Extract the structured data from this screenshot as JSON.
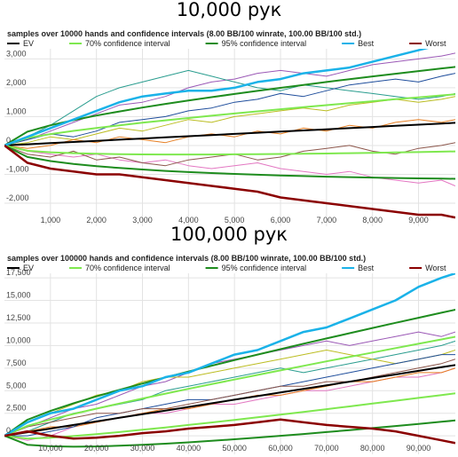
{
  "chart_data": [
    {
      "type": "line",
      "title": "10,000 рук",
      "subtitle": "samples over 10000 hands and confidence intervals (8.00 BB/100 winrate, 100.00 BB/100 std.)",
      "x": [
        0,
        500,
        1000,
        1500,
        2000,
        2500,
        3000,
        3500,
        4000,
        4500,
        5000,
        5500,
        6000,
        6500,
        7000,
        7500,
        8000,
        8500,
        9000,
        9500,
        9800
      ],
      "xlim": [
        0,
        9800
      ],
      "xticks": [
        {
          "value": 1000,
          "label": "1,000"
        },
        {
          "value": 2000,
          "label": "2,000"
        },
        {
          "value": 3000,
          "label": "3,000"
        },
        {
          "value": 4000,
          "label": "4,000"
        },
        {
          "value": 5000,
          "label": "5,000"
        },
        {
          "value": 6000,
          "label": "6,000"
        },
        {
          "value": 7000,
          "label": "7,000"
        },
        {
          "value": 8000,
          "label": "8,000"
        },
        {
          "value": 9000,
          "label": "9,000"
        }
      ],
      "ylim": [
        -2800,
        3350
      ],
      "yticks": [
        {
          "value": -2000,
          "label": "-2,000"
        },
        {
          "value": -1000,
          "label": "-1,000"
        },
        0,
        {
          "value": 1000,
          "label": "1,000"
        },
        {
          "value": 2000,
          "label": "2,000"
        },
        {
          "value": 3000,
          "label": "3,000"
        }
      ],
      "grid": true,
      "legend": "top",
      "series": [
        {
          "color": "#9b59b6",
          "values": [
            0,
            200,
            500,
            800,
            1100,
            1400,
            1500,
            1700,
            2000,
            2200,
            2300,
            2500,
            2600,
            2500,
            2400,
            2600,
            2800,
            2900,
            3000,
            3100,
            3200
          ]
        },
        {
          "color": "#2a9d8f",
          "values": [
            0,
            300,
            700,
            1200,
            1700,
            2000,
            2200,
            2400,
            2600,
            2400,
            2200,
            2000,
            1900,
            2100,
            2000,
            1900,
            1800,
            1700,
            1600,
            1700,
            1800
          ]
        },
        {
          "color": "#e377c2",
          "values": [
            0,
            -200,
            -300,
            -400,
            -300,
            -500,
            -600,
            -500,
            -700,
            -800,
            -700,
            -600,
            -800,
            -900,
            -1000,
            -900,
            -1100,
            -1200,
            -1300,
            -1200,
            -1400
          ]
        },
        {
          "color": "#bcbd22",
          "values": [
            0,
            100,
            300,
            200,
            400,
            600,
            500,
            700,
            900,
            800,
            1000,
            1100,
            1200,
            1300,
            1200,
            1400,
            1500,
            1600,
            1500,
            1600,
            1700
          ]
        },
        {
          "color": "#e67e22",
          "values": [
            0,
            -100,
            0,
            200,
            100,
            300,
            200,
            100,
            300,
            400,
            300,
            500,
            400,
            600,
            500,
            700,
            600,
            800,
            900,
            800,
            900
          ]
        },
        {
          "color": "#1f4e9c",
          "values": [
            0,
            200,
            400,
            300,
            500,
            800,
            900,
            1000,
            1200,
            1300,
            1500,
            1600,
            1800,
            1700,
            1900,
            2100,
            2200,
            2300,
            2200,
            2400,
            2500
          ]
        },
        {
          "color": "#8c564b",
          "values": [
            0,
            -300,
            -400,
            -200,
            -500,
            -400,
            -600,
            -700,
            -500,
            -400,
            -300,
            -500,
            -400,
            -200,
            -100,
            0,
            -200,
            -300,
            -100,
            0,
            100
          ]
        },
        {
          "name": "EV",
          "color": "#000000",
          "values": [
            0,
            40,
            80,
            120,
            160,
            200,
            240,
            280,
            320,
            360,
            400,
            440,
            480,
            520,
            560,
            600,
            640,
            680,
            720,
            760,
            784
          ]
        },
        {
          "name": "70% confidence interval",
          "color": "#7fe84f",
          "upper": [
            0,
            264,
            396,
            507,
            607,
            700,
            788,
            872,
            952,
            1031,
            1107,
            1182,
            1255,
            1326,
            1397,
            1466,
            1534,
            1602,
            1669,
            1735,
            1774
          ],
          "lower": [
            0,
            -184,
            -236,
            -267,
            -287,
            -300,
            -308,
            -312,
            -312,
            -311,
            -307,
            -302,
            -295,
            -286,
            -277,
            -266,
            -254,
            -242,
            -229,
            -215,
            -206
          ]
        },
        {
          "name": "95% confidence interval",
          "color": "#1e8c1e",
          "upper": [
            0,
            478,
            700,
            879,
            1037,
            1180,
            1313,
            1440,
            1560,
            1675,
            1786,
            1893,
            1998,
            2100,
            2200,
            2297,
            2393,
            2487,
            2579,
            2670,
            2724
          ],
          "lower": [
            0,
            -398,
            -540,
            -639,
            -717,
            -780,
            -833,
            -880,
            -920,
            -955,
            -986,
            -1013,
            -1038,
            -1060,
            -1080,
            -1097,
            -1113,
            -1127,
            -1139,
            -1150,
            -1156
          ]
        },
        {
          "name": "Best",
          "color": "#1ab2e8",
          "values": [
            0,
            300,
            600,
            900,
            1200,
            1500,
            1700,
            1800,
            1900,
            1900,
            2000,
            2200,
            2300,
            2500,
            2600,
            2700,
            2900,
            3100,
            3300,
            3500,
            3600
          ]
        },
        {
          "name": "Worst",
          "color": "#8b0000",
          "values": [
            0,
            -600,
            -800,
            -900,
            -1000,
            -1000,
            -1100,
            -1200,
            -1300,
            -1400,
            -1500,
            -1600,
            -1800,
            -1900,
            -2000,
            -2100,
            -2200,
            -2300,
            -2400,
            -2400,
            -2500
          ]
        }
      ]
    },
    {
      "type": "line",
      "title": "100,000 рук",
      "subtitle": "samples over 100000 hands and confidence intervals (8.00 BB/100 winrate, 100.00 BB/100 std.)",
      "x": [
        0,
        5000,
        10000,
        15000,
        20000,
        25000,
        30000,
        35000,
        40000,
        45000,
        50000,
        55000,
        60000,
        65000,
        70000,
        75000,
        80000,
        85000,
        90000,
        95000,
        98000
      ],
      "xlim": [
        0,
        98000
      ],
      "xticks": [
        {
          "value": 10000,
          "label": "10,000"
        },
        {
          "value": 20000,
          "label": "20,000"
        },
        {
          "value": 30000,
          "label": "30,000"
        },
        {
          "value": 40000,
          "label": "40,000"
        },
        {
          "value": 50000,
          "label": "50,000"
        },
        {
          "value": 60000,
          "label": "60,000"
        },
        {
          "value": 70000,
          "label": "70,000"
        },
        {
          "value": 80000,
          "label": "80,000"
        },
        {
          "value": 90000,
          "label": "90,000"
        }
      ],
      "ylim": [
        -2050,
        18000
      ],
      "yticks": [
        0,
        {
          "value": 2500,
          "label": "2,500"
        },
        {
          "value": 5000,
          "label": "5,000"
        },
        {
          "value": 7500,
          "label": "7,500"
        },
        {
          "value": 10000,
          "label": "10,000"
        },
        {
          "value": 12500,
          "label": "12,500"
        },
        {
          "value": 15000,
          "label": "15,000"
        },
        {
          "value": 17500,
          "label": "17,500"
        }
      ],
      "grid": true,
      "legend": "top",
      "series": [
        {
          "color": "#9b59b6",
          "values": [
            0,
            1000,
            2000,
            3000,
            3500,
            4500,
            5500,
            6000,
            7000,
            8000,
            8500,
            9000,
            9500,
            10000,
            10500,
            10000,
            10500,
            11000,
            11500,
            11000,
            11500
          ]
        },
        {
          "color": "#2a9d8f",
          "values": [
            0,
            500,
            1500,
            2500,
            3000,
            3500,
            4000,
            5000,
            5500,
            6000,
            6500,
            7000,
            7500,
            7000,
            7500,
            8000,
            8500,
            9000,
            9500,
            10000,
            10500
          ]
        },
        {
          "color": "#e377c2",
          "values": [
            0,
            -500,
            0,
            1000,
            1500,
            2000,
            2500,
            2500,
            3000,
            3500,
            3500,
            4000,
            4500,
            5000,
            5000,
            5500,
            6000,
            6500,
            6500,
            7000,
            7500
          ]
        },
        {
          "color": "#bcbd22",
          "values": [
            0,
            1500,
            2500,
            3500,
            4500,
            5000,
            6000,
            6500,
            6500,
            7000,
            7500,
            8000,
            8500,
            9000,
            9500,
            9000,
            8500,
            8000,
            8500,
            9000,
            9500
          ]
        },
        {
          "color": "#e67e22",
          "values": [
            0,
            500,
            1000,
            1000,
            1500,
            2000,
            2500,
            3000,
            3000,
            3500,
            4000,
            4500,
            4500,
            5000,
            5500,
            6000,
            6000,
            6500,
            7000,
            7000,
            7500
          ]
        },
        {
          "color": "#1f4e9c",
          "values": [
            0,
            0,
            500,
            1000,
            2000,
            2500,
            3000,
            3500,
            4000,
            4000,
            4500,
            5000,
            5500,
            6000,
            6500,
            7000,
            7500,
            8000,
            8500,
            9000,
            9000
          ]
        },
        {
          "color": "#8c564b",
          "values": [
            0,
            1000,
            1500,
            2000,
            2500,
            2500,
            3000,
            3000,
            3500,
            4000,
            4500,
            5000,
            5500,
            5500,
            6000,
            6000,
            6500,
            7000,
            7500,
            8000,
            8500
          ]
        },
        {
          "name": "EV",
          "color": "#000000",
          "values": [
            0,
            400,
            800,
            1200,
            1600,
            2000,
            2400,
            2800,
            3200,
            3600,
            4000,
            4400,
            4800,
            5200,
            5600,
            6000,
            6400,
            6800,
            7200,
            7600,
            7840
          ]
        },
        {
          "name": "70% confidence interval",
          "color": "#7fe84f",
          "upper": [
            0,
            1107,
            1800,
            2425,
            3014,
            3581,
            4132,
            4671,
            5200,
            5721,
            6236,
            6745,
            7249,
            7750,
            8246,
            8739,
            9228,
            9715,
            10200,
            10682,
            10970
          ],
          "lower": [
            0,
            -307,
            -200,
            -25,
            186,
            419,
            668,
            929,
            1200,
            1479,
            1764,
            2055,
            2351,
            2650,
            2954,
            3261,
            3572,
            3885,
            4200,
            4518,
            4710
          ]
        },
        {
          "name": "95% confidence interval",
          "color": "#1e8c1e",
          "upper": [
            0,
            1786,
            2760,
            3601,
            4371,
            5099,
            5795,
            6467,
            7120,
            7757,
            8383,
            8996,
            9600,
            10198,
            10786,
            11368,
            11943,
            12513,
            13080,
            13641,
            13975
          ],
          "lower": [
            0,
            -986,
            -1160,
            -1201,
            -1171,
            -1099,
            -995,
            -867,
            -720,
            -557,
            -383,
            -196,
            0,
            202,
            414,
            632,
            857,
            1087,
            1320,
            1559,
            1705
          ]
        },
        {
          "name": "Best",
          "color": "#1ab2e8",
          "values": [
            0,
            1500,
            2500,
            3000,
            4000,
            5000,
            5500,
            6500,
            7000,
            8000,
            9000,
            9500,
            10500,
            11500,
            12000,
            13000,
            14000,
            15000,
            16500,
            17500,
            18000
          ]
        },
        {
          "name": "Worst",
          "color": "#8b0000",
          "values": [
            0,
            500,
            0,
            -300,
            -200,
            0,
            300,
            500,
            800,
            1000,
            1200,
            1500,
            1800,
            1500,
            1200,
            1000,
            800,
            500,
            0,
            -500,
            -800
          ]
        }
      ]
    }
  ]
}
